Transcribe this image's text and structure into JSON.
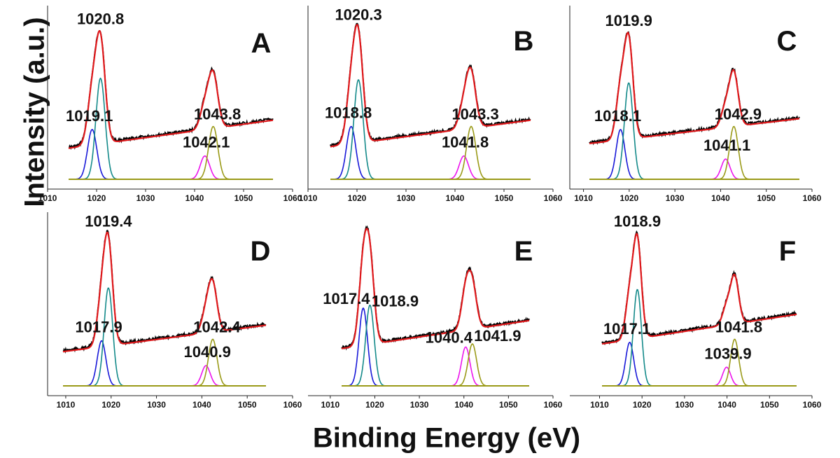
{
  "figure": {
    "ylabel": "Intensity (a.u.)",
    "xlabel": "Binding Energy (eV)"
  },
  "colors": {
    "data": "#000000",
    "envelope": "#e0181b",
    "baseline": "#9a9a18",
    "peak_1": "#1818d8",
    "peak_2": "#148a8a",
    "peak_3": "#ec14ec",
    "peak_4": "#9a9a18"
  },
  "chart_data": [
    {
      "panel": "A",
      "type": "line",
      "xlim": [
        1010,
        1060
      ],
      "x_ticks": [
        1010,
        1020,
        1030,
        1040,
        1050,
        1060
      ],
      "background": {
        "start": 0.2,
        "end": 0.38
      },
      "peaks": [
        {
          "center": 1019.1,
          "amplitude": 0.32,
          "width": 0.95,
          "label": "1019.1",
          "color_key": "peak_1"
        },
        {
          "center": 1020.8,
          "amplitude": 0.65,
          "width": 0.95,
          "label": "1020.8",
          "color_key": "peak_2"
        },
        {
          "center": 1042.1,
          "amplitude": 0.15,
          "width": 0.95,
          "label": "1042.1",
          "color_key": "peak_3"
        },
        {
          "center": 1043.8,
          "amplitude": 0.34,
          "width": 0.95,
          "label": "1043.8",
          "color_key": "peak_4"
        }
      ]
    },
    {
      "panel": "B",
      "type": "line",
      "xlim": [
        1010,
        1060
      ],
      "x_ticks": [
        1010,
        1020,
        1030,
        1040,
        1050,
        1060
      ],
      "background": {
        "start": 0.21,
        "end": 0.38
      },
      "peaks": [
        {
          "center": 1018.8,
          "amplitude": 0.34,
          "width": 0.95,
          "label": "1018.8",
          "color_key": "peak_1"
        },
        {
          "center": 1020.3,
          "amplitude": 0.64,
          "width": 0.95,
          "label": "1020.3",
          "color_key": "peak_2"
        },
        {
          "center": 1041.8,
          "amplitude": 0.15,
          "width": 0.95,
          "label": "1041.8",
          "color_key": "peak_3"
        },
        {
          "center": 1043.3,
          "amplitude": 0.34,
          "width": 0.95,
          "label": "1043.3",
          "color_key": "peak_4"
        }
      ]
    },
    {
      "panel": "C",
      "type": "line",
      "xlim": [
        1007,
        1060
      ],
      "x_ticks": [
        1010,
        1020,
        1030,
        1040,
        1050,
        1060
      ],
      "background": {
        "start": 0.23,
        "end": 0.39
      },
      "peaks": [
        {
          "center": 1018.1,
          "amplitude": 0.32,
          "width": 0.95,
          "label": "1018.1",
          "color_key": "peak_1"
        },
        {
          "center": 1019.9,
          "amplitude": 0.62,
          "width": 0.95,
          "label": "1019.9",
          "color_key": "peak_2"
        },
        {
          "center": 1041.1,
          "amplitude": 0.13,
          "width": 0.95,
          "label": "1041.1",
          "color_key": "peak_3"
        },
        {
          "center": 1042.9,
          "amplitude": 0.34,
          "width": 0.95,
          "label": "1042.9",
          "color_key": "peak_4"
        }
      ]
    },
    {
      "panel": "D",
      "type": "line",
      "xlim": [
        1006,
        1060
      ],
      "x_ticks": [
        1010,
        1020,
        1030,
        1040,
        1050,
        1060
      ],
      "background": {
        "start": 0.22,
        "end": 0.39
      },
      "peaks": [
        {
          "center": 1017.9,
          "amplitude": 0.29,
          "width": 0.95,
          "label": "1017.9",
          "color_key": "peak_1"
        },
        {
          "center": 1019.4,
          "amplitude": 0.63,
          "width": 0.95,
          "label": "1019.4",
          "color_key": "peak_2"
        },
        {
          "center": 1040.9,
          "amplitude": 0.13,
          "width": 0.95,
          "label": "1040.9",
          "color_key": "peak_3"
        },
        {
          "center": 1042.4,
          "amplitude": 0.3,
          "width": 0.95,
          "label": "1042.4",
          "color_key": "peak_4"
        }
      ]
    },
    {
      "panel": "E",
      "type": "line",
      "xlim": [
        1005,
        1060
      ],
      "x_ticks": [
        1010,
        1020,
        1030,
        1040,
        1050,
        1060
      ],
      "background": {
        "start": 0.24,
        "end": 0.42
      },
      "peaks": [
        {
          "center": 1017.4,
          "amplitude": 0.5,
          "width": 0.95,
          "label": "1017.4",
          "color_key": "peak_1"
        },
        {
          "center": 1018.9,
          "amplitude": 0.52,
          "width": 0.95,
          "label": "1018.9",
          "color_key": "peak_2"
        },
        {
          "center": 1040.4,
          "amplitude": 0.25,
          "width": 0.95,
          "label": "1040.4",
          "color_key": "peak_3"
        },
        {
          "center": 1041.9,
          "amplitude": 0.27,
          "width": 0.95,
          "label": "1041.9",
          "color_key": "peak_4"
        }
      ]
    },
    {
      "panel": "F",
      "type": "line",
      "xlim": [
        1003,
        1060
      ],
      "x_ticks": [
        1010,
        1020,
        1030,
        1040,
        1050,
        1060
      ],
      "background": {
        "start": 0.27,
        "end": 0.46
      },
      "peaks": [
        {
          "center": 1017.1,
          "amplitude": 0.28,
          "width": 0.95,
          "label": "1017.1",
          "color_key": "peak_1"
        },
        {
          "center": 1018.9,
          "amplitude": 0.62,
          "width": 0.95,
          "label": "1018.9",
          "color_key": "peak_2"
        },
        {
          "center": 1039.9,
          "amplitude": 0.12,
          "width": 0.95,
          "label": "1039.9",
          "color_key": "peak_3"
        },
        {
          "center": 1041.8,
          "amplitude": 0.3,
          "width": 0.95,
          "label": "1041.8",
          "color_key": "peak_4"
        }
      ]
    }
  ]
}
